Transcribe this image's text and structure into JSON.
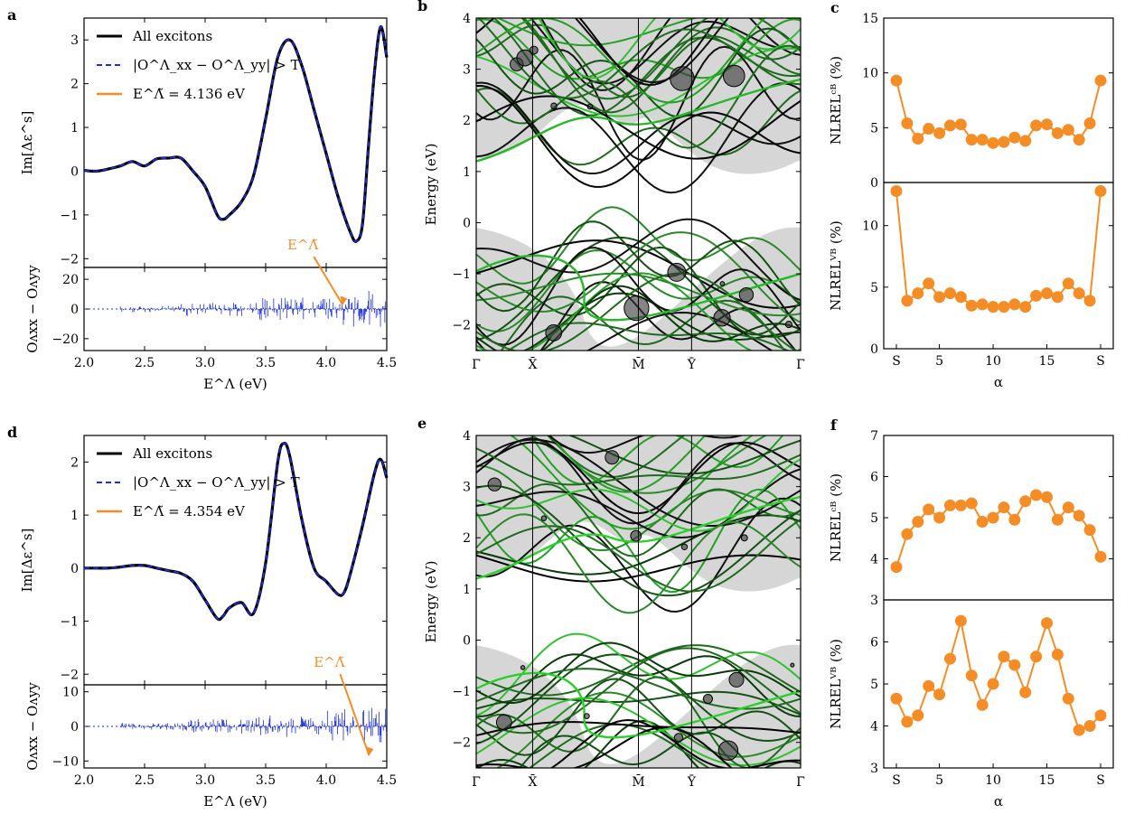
{
  "chart_data": [
    {
      "id": "a",
      "type": "line",
      "panel_label": "a",
      "xlabel": "E^Λ (eV)",
      "x_ticks": [
        "2.0",
        "2.5",
        "3.0",
        "3.5",
        "4.0",
        "4.5"
      ],
      "xlim": [
        2.0,
        4.5
      ],
      "top": {
        "ylabel": "Im[Δε^s]",
        "ylim": [
          -2.2,
          3.5
        ],
        "y_ticks": [
          "−2",
          "−1",
          "0",
          "1",
          "2",
          "3"
        ],
        "legend": [
          "All excitons",
          "|O^Λ_xx − O^Λ_yy| > T",
          "E^Λ̃ = 4.136 eV"
        ],
        "series": [
          {
            "name": "All excitons",
            "color": "#000000",
            "x": [
              2.0,
              2.1,
              2.2,
              2.3,
              2.4,
              2.5,
              2.6,
              2.7,
              2.8,
              2.9,
              3.0,
              3.1,
              3.15,
              3.2,
              3.3,
              3.4,
              3.5,
              3.6,
              3.7,
              3.8,
              3.9,
              4.0,
              4.1,
              4.2,
              4.25,
              4.3,
              4.35,
              4.4,
              4.45,
              4.5
            ],
            "y": [
              0.02,
              0.0,
              0.05,
              0.12,
              0.22,
              0.12,
              0.28,
              0.3,
              0.3,
              0.0,
              -0.35,
              -1.0,
              -1.1,
              -1.0,
              -0.7,
              -0.1,
              1.2,
              2.6,
              3.0,
              2.4,
              1.4,
              0.4,
              -0.6,
              -1.4,
              -1.6,
              -1.2,
              0.6,
              2.3,
              3.3,
              2.6
            ]
          }
        ]
      },
      "bottom": {
        "ylabel": "O^Λ_xx − O^Λ_yy",
        "ylim": [
          -28,
          28
        ],
        "y_ticks": [
          "−20",
          "0",
          "20"
        ],
        "annotation": "E^Λ̃",
        "annotation_x": 4.136
      }
    },
    {
      "id": "b",
      "type": "line",
      "panel_label": "b",
      "ylabel": "Energy (eV)",
      "ylim": [
        -2.5,
        4.0
      ],
      "y_ticks": [
        "−2",
        "−1",
        "0",
        "1",
        "2",
        "3",
        "4"
      ],
      "x_ticks": [
        "Γ̄",
        "X̄",
        "M̄",
        "Ȳ",
        "Γ̄"
      ]
    },
    {
      "id": "c",
      "type": "line",
      "panel_label": "c",
      "xlabel": "α",
      "x_ticks": [
        "S",
        "5",
        "10",
        "15",
        "S"
      ],
      "top": {
        "ylabel": "NLREL^CB_Λ,α (%)",
        "ylim": [
          0,
          15
        ],
        "y_ticks": [
          "0",
          "5",
          "10",
          "15"
        ],
        "values": [
          9.3,
          5.4,
          4.0,
          4.9,
          4.5,
          5.2,
          5.3,
          3.9,
          3.9,
          3.6,
          3.7,
          4.1,
          3.8,
          5.2,
          5.3,
          4.5,
          4.8,
          3.9,
          5.4,
          9.3
        ]
      },
      "bottom": {
        "ylabel": "NLREL^VB_Λ,α (%)",
        "ylim": [
          0,
          13.5
        ],
        "y_ticks": [
          "0",
          "5",
          "10"
        ],
        "values": [
          12.8,
          3.9,
          4.5,
          5.3,
          4.2,
          4.5,
          4.2,
          3.5,
          3.6,
          3.4,
          3.4,
          3.6,
          3.4,
          4.3,
          4.5,
          4.2,
          5.3,
          4.5,
          3.9,
          12.8
        ]
      },
      "color": "#f58d27"
    },
    {
      "id": "d",
      "type": "line",
      "panel_label": "d",
      "xlabel": "E^Λ (eV)",
      "x_ticks": [
        "2.0",
        "2.5",
        "3.0",
        "3.5",
        "4.0",
        "4.5"
      ],
      "xlim": [
        2.0,
        4.5
      ],
      "top": {
        "ylabel": "Im[Δε^s]",
        "ylim": [
          -2.2,
          2.5
        ],
        "y_ticks": [
          "−2",
          "−1",
          "0",
          "1",
          "2"
        ],
        "legend": [
          "All excitons",
          "|O^Λ_xx − O^Λ_yy| > T",
          "E^Λ̃ = 4.354 eV"
        ],
        "series": [
          {
            "name": "All excitons",
            "color": "#000000",
            "x": [
              2.0,
              2.1,
              2.2,
              2.3,
              2.4,
              2.5,
              2.6,
              2.7,
              2.8,
              2.9,
              3.0,
              3.1,
              3.15,
              3.2,
              3.3,
              3.4,
              3.5,
              3.6,
              3.65,
              3.7,
              3.8,
              3.9,
              4.0,
              4.1,
              4.15,
              4.2,
              4.3,
              4.4,
              4.45,
              4.5
            ],
            "y": [
              0.0,
              0.0,
              0.0,
              0.02,
              0.05,
              0.05,
              0.0,
              -0.05,
              -0.1,
              -0.25,
              -0.6,
              -0.95,
              -0.9,
              -0.75,
              -0.65,
              -0.85,
              0.1,
              2.0,
              2.35,
              2.1,
              0.9,
              0.0,
              -0.25,
              -0.5,
              -0.45,
              -0.1,
              0.8,
              1.8,
              2.05,
              1.7
            ]
          }
        ]
      },
      "bottom": {
        "ylabel": "O^Λ_xx − O^Λ_yy",
        "ylim": [
          -12,
          12
        ],
        "y_ticks": [
          "−10",
          "0",
          "10"
        ],
        "annotation": "E^Λ̃",
        "annotation_x": 4.354
      }
    },
    {
      "id": "e",
      "type": "line",
      "panel_label": "e",
      "ylabel": "Energy (eV)",
      "ylim": [
        -2.5,
        4.0
      ],
      "y_ticks": [
        "−2",
        "−1",
        "0",
        "1",
        "2",
        "3",
        "4"
      ],
      "x_ticks": [
        "Γ̄",
        "X̄",
        "M̄",
        "Ȳ",
        "Γ̄"
      ]
    },
    {
      "id": "f",
      "type": "line",
      "panel_label": "f",
      "xlabel": "α",
      "x_ticks": [
        "S",
        "5",
        "10",
        "15",
        "S"
      ],
      "top": {
        "ylabel": "NLREL^CB_Λ,α (%)",
        "ylim": [
          3,
          7
        ],
        "y_ticks": [
          "3",
          "4",
          "5",
          "6",
          "7"
        ],
        "values": [
          3.8,
          4.6,
          4.9,
          5.2,
          5.0,
          5.3,
          5.3,
          5.35,
          4.9,
          5.0,
          5.25,
          4.95,
          5.4,
          5.55,
          5.5,
          4.95,
          5.25,
          5.05,
          4.7,
          4.05
        ]
      },
      "bottom": {
        "ylabel": "NLREL^VB_Λ,α (%)",
        "ylim": [
          3,
          7
        ],
        "y_ticks": [
          "3",
          "4",
          "5",
          "6"
        ],
        "values": [
          4.65,
          4.1,
          4.25,
          4.95,
          4.75,
          5.6,
          6.5,
          5.2,
          4.5,
          5.0,
          5.65,
          5.45,
          4.8,
          5.65,
          6.45,
          5.7,
          4.65,
          3.9,
          4.0,
          4.25
        ]
      },
      "color": "#f58d27"
    }
  ]
}
